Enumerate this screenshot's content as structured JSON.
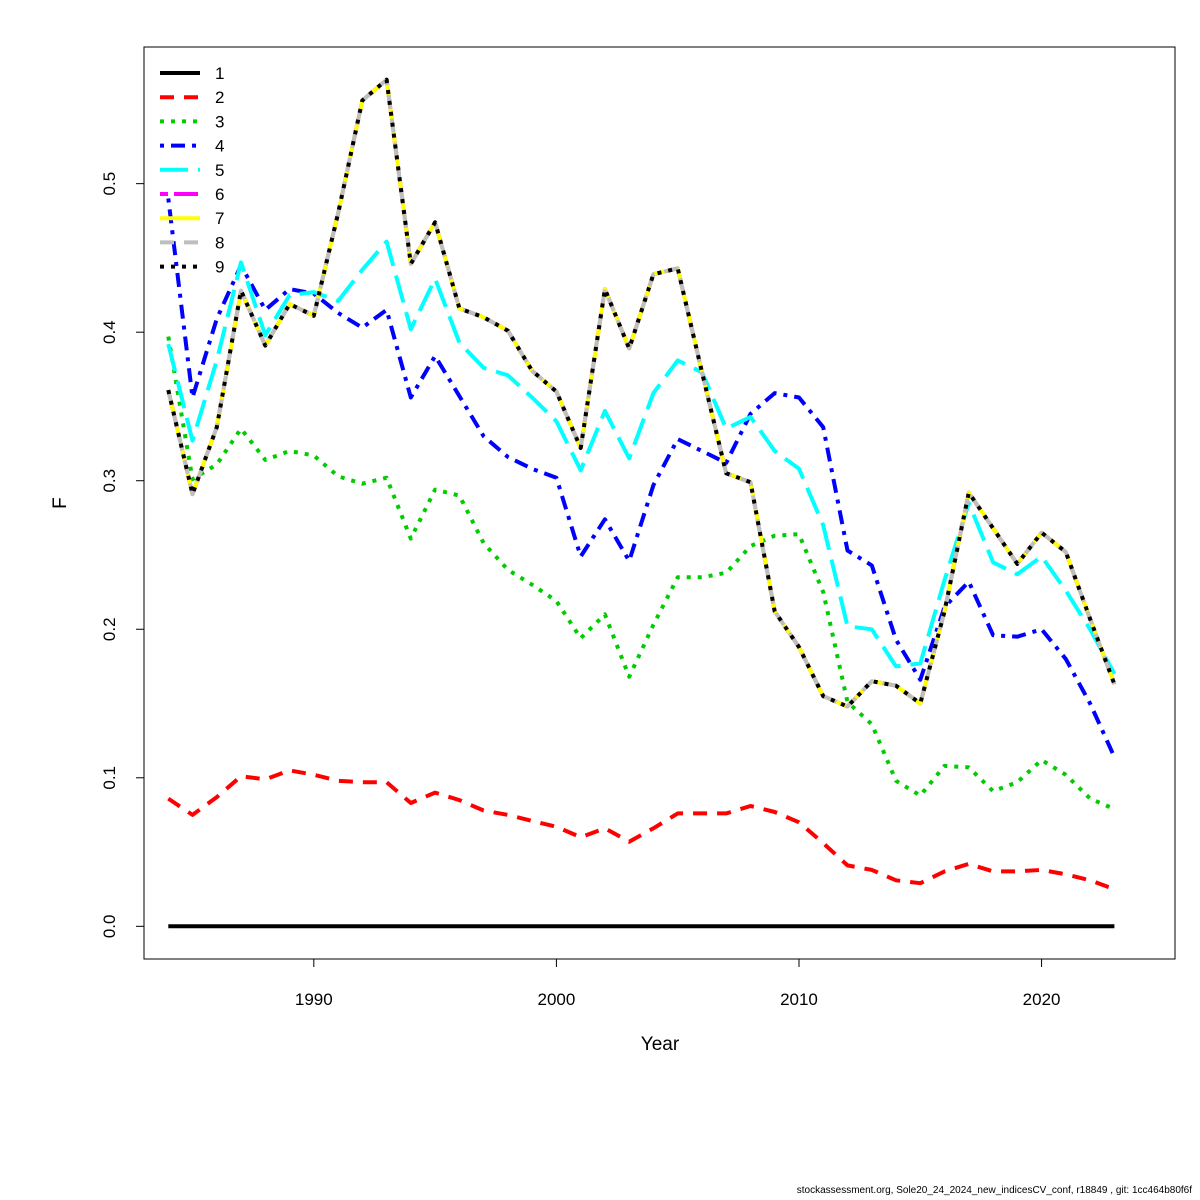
{
  "chart_data": {
    "type": "line",
    "title": "",
    "xlabel": "Year",
    "ylabel": "F",
    "xlim": [
      1983,
      2025.5
    ],
    "ylim": [
      -0.022,
      0.592
    ],
    "x_ticks": [
      1990,
      2000,
      2010,
      2020
    ],
    "y_ticks": [
      0.0,
      0.1,
      0.2,
      0.3,
      0.4,
      0.5
    ],
    "x_tick_labels": [
      "1990",
      "2000",
      "2010",
      "2020"
    ],
    "y_tick_labels": [
      "0.0",
      "0.1",
      "0.2",
      "0.3",
      "0.4",
      "0.5"
    ],
    "grid": false,
    "legend_position": "top-left",
    "x": [
      1984,
      1985,
      1986,
      1987,
      1988,
      1989,
      1990,
      1991,
      1992,
      1993,
      1994,
      1995,
      1996,
      1997,
      1998,
      1999,
      2000,
      2001,
      2002,
      2003,
      2004,
      2005,
      2006,
      2007,
      2008,
      2009,
      2010,
      2011,
      2012,
      2013,
      2014,
      2015,
      2016,
      2017,
      2018,
      2019,
      2020,
      2021,
      2022,
      2023
    ],
    "series": [
      {
        "name": "1",
        "color": "#000000",
        "dash": "solid",
        "values": [
          0.0,
          0.0,
          0.0,
          0.0,
          0.0,
          0.0,
          0.0,
          0.0,
          0.0,
          0.0,
          0.0,
          0.0,
          0.0,
          0.0,
          0.0,
          0.0,
          0.0,
          0.0,
          0.0,
          0.0,
          0.0,
          0.0,
          0.0,
          0.0,
          0.0,
          0.0,
          0.0,
          0.0,
          0.0,
          0.0,
          0.0,
          0.0,
          0.0,
          0.0,
          0.0,
          0.0,
          0.0,
          0.0,
          0.0,
          0.0
        ]
      },
      {
        "name": "2",
        "color": "#ff0000",
        "dash": "dashed",
        "values": [
          0.086,
          0.075,
          0.087,
          0.101,
          0.099,
          0.105,
          0.102,
          0.098,
          0.097,
          0.097,
          0.083,
          0.09,
          0.085,
          0.078,
          0.075,
          0.071,
          0.067,
          0.06,
          0.066,
          0.057,
          0.066,
          0.076,
          0.076,
          0.076,
          0.081,
          0.077,
          0.07,
          0.056,
          0.041,
          0.038,
          0.031,
          0.029,
          0.037,
          0.042,
          0.037,
          0.037,
          0.038,
          0.035,
          0.031,
          0.025
        ]
      },
      {
        "name": "3",
        "color": "#00cd00",
        "dash": "dotted",
        "values": [
          0.397,
          0.301,
          0.311,
          0.335,
          0.314,
          0.32,
          0.317,
          0.303,
          0.298,
          0.302,
          0.261,
          0.294,
          0.29,
          0.258,
          0.24,
          0.23,
          0.219,
          0.194,
          0.21,
          0.168,
          0.203,
          0.235,
          0.235,
          0.238,
          0.256,
          0.263,
          0.264,
          0.225,
          0.151,
          0.136,
          0.098,
          0.088,
          0.108,
          0.107,
          0.091,
          0.097,
          0.112,
          0.102,
          0.086,
          0.079
        ]
      },
      {
        "name": "4",
        "color": "#0000ff",
        "dash": "dotdash",
        "values": [
          0.49,
          0.356,
          0.409,
          0.445,
          0.415,
          0.429,
          0.426,
          0.413,
          0.403,
          0.415,
          0.356,
          0.384,
          0.357,
          0.33,
          0.316,
          0.308,
          0.302,
          0.249,
          0.274,
          0.246,
          0.297,
          0.328,
          0.32,
          0.312,
          0.345,
          0.359,
          0.356,
          0.336,
          0.253,
          0.243,
          0.193,
          0.166,
          0.215,
          0.232,
          0.196,
          0.195,
          0.2,
          0.18,
          0.15,
          0.114
        ]
      },
      {
        "name": "5",
        "color": "#00ffff",
        "dash": "longdash",
        "values": [
          0.392,
          0.327,
          0.381,
          0.447,
          0.398,
          0.425,
          0.427,
          0.421,
          0.442,
          0.461,
          0.402,
          0.436,
          0.393,
          0.376,
          0.371,
          0.356,
          0.34,
          0.307,
          0.347,
          0.315,
          0.359,
          0.381,
          0.373,
          0.335,
          0.343,
          0.32,
          0.308,
          0.27,
          0.202,
          0.2,
          0.175,
          0.177,
          0.233,
          0.285,
          0.245,
          0.237,
          0.249,
          0.226,
          0.2,
          0.17
        ]
      },
      {
        "name": "6",
        "color": "#ff00ff",
        "dash": "twodash",
        "values": [
          0.361,
          0.291,
          0.336,
          0.428,
          0.391,
          0.419,
          0.411,
          0.48,
          0.556,
          0.57,
          0.446,
          0.474,
          0.416,
          0.41,
          0.401,
          0.374,
          0.36,
          0.322,
          0.429,
          0.389,
          0.439,
          0.443,
          0.373,
          0.305,
          0.299,
          0.212,
          0.188,
          0.155,
          0.148,
          0.165,
          0.162,
          0.15,
          0.212,
          0.292,
          0.268,
          0.244,
          0.265,
          0.252,
          0.207,
          0.163
        ]
      },
      {
        "name": "7",
        "color": "#ffff00",
        "dash": "solid",
        "values": [
          0.361,
          0.291,
          0.336,
          0.428,
          0.391,
          0.419,
          0.411,
          0.48,
          0.556,
          0.57,
          0.446,
          0.474,
          0.416,
          0.41,
          0.401,
          0.374,
          0.36,
          0.322,
          0.429,
          0.389,
          0.439,
          0.443,
          0.373,
          0.305,
          0.299,
          0.212,
          0.188,
          0.155,
          0.148,
          0.165,
          0.162,
          0.15,
          0.212,
          0.292,
          0.268,
          0.244,
          0.265,
          0.252,
          0.207,
          0.163
        ]
      },
      {
        "name": "8",
        "color": "#bebebe",
        "dash": "dashed",
        "values": [
          0.361,
          0.291,
          0.336,
          0.428,
          0.391,
          0.419,
          0.411,
          0.48,
          0.556,
          0.57,
          0.446,
          0.474,
          0.416,
          0.41,
          0.401,
          0.374,
          0.36,
          0.322,
          0.429,
          0.389,
          0.439,
          0.443,
          0.373,
          0.305,
          0.299,
          0.212,
          0.188,
          0.155,
          0.148,
          0.165,
          0.162,
          0.15,
          0.212,
          0.292,
          0.268,
          0.244,
          0.265,
          0.252,
          0.207,
          0.163
        ]
      },
      {
        "name": "9",
        "color": "#000000",
        "dash": "dotted",
        "values": [
          0.361,
          0.291,
          0.336,
          0.428,
          0.391,
          0.419,
          0.411,
          0.48,
          0.556,
          0.57,
          0.446,
          0.474,
          0.416,
          0.41,
          0.401,
          0.374,
          0.36,
          0.322,
          0.429,
          0.389,
          0.439,
          0.443,
          0.373,
          0.305,
          0.299,
          0.212,
          0.188,
          0.155,
          0.148,
          0.165,
          0.162,
          0.15,
          0.212,
          0.292,
          0.268,
          0.244,
          0.265,
          0.252,
          0.207,
          0.163
        ]
      }
    ]
  },
  "footer": {
    "text": "stockassessment.org, Sole20_24_2024_new_indicesCV_conf, r18849 , git: 1cc464b80f6f"
  }
}
